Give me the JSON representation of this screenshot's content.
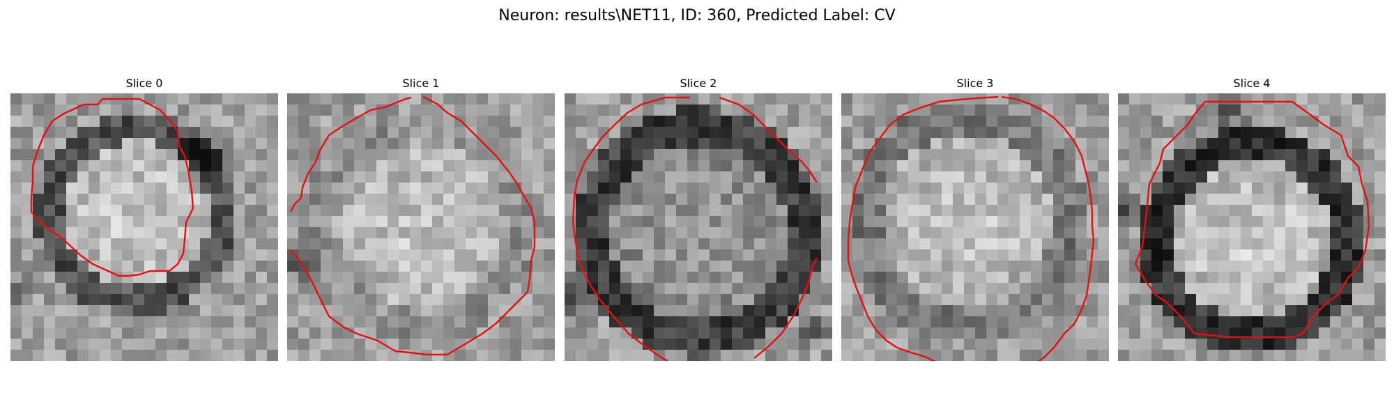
{
  "figure": {
    "title": "Neuron: results\\NET11, ID: 360, Predicted Label: CV"
  },
  "slices": [
    {
      "label": "Slice 0",
      "outline_color": "#e41010"
    },
    {
      "label": "Slice 1",
      "outline_color": "#e41010"
    },
    {
      "label": "Slice 2",
      "outline_color": "#e41010"
    },
    {
      "label": "Slice 3",
      "outline_color": "#e41010"
    },
    {
      "label": "Slice 4",
      "outline_color": "#e41010"
    }
  ]
}
